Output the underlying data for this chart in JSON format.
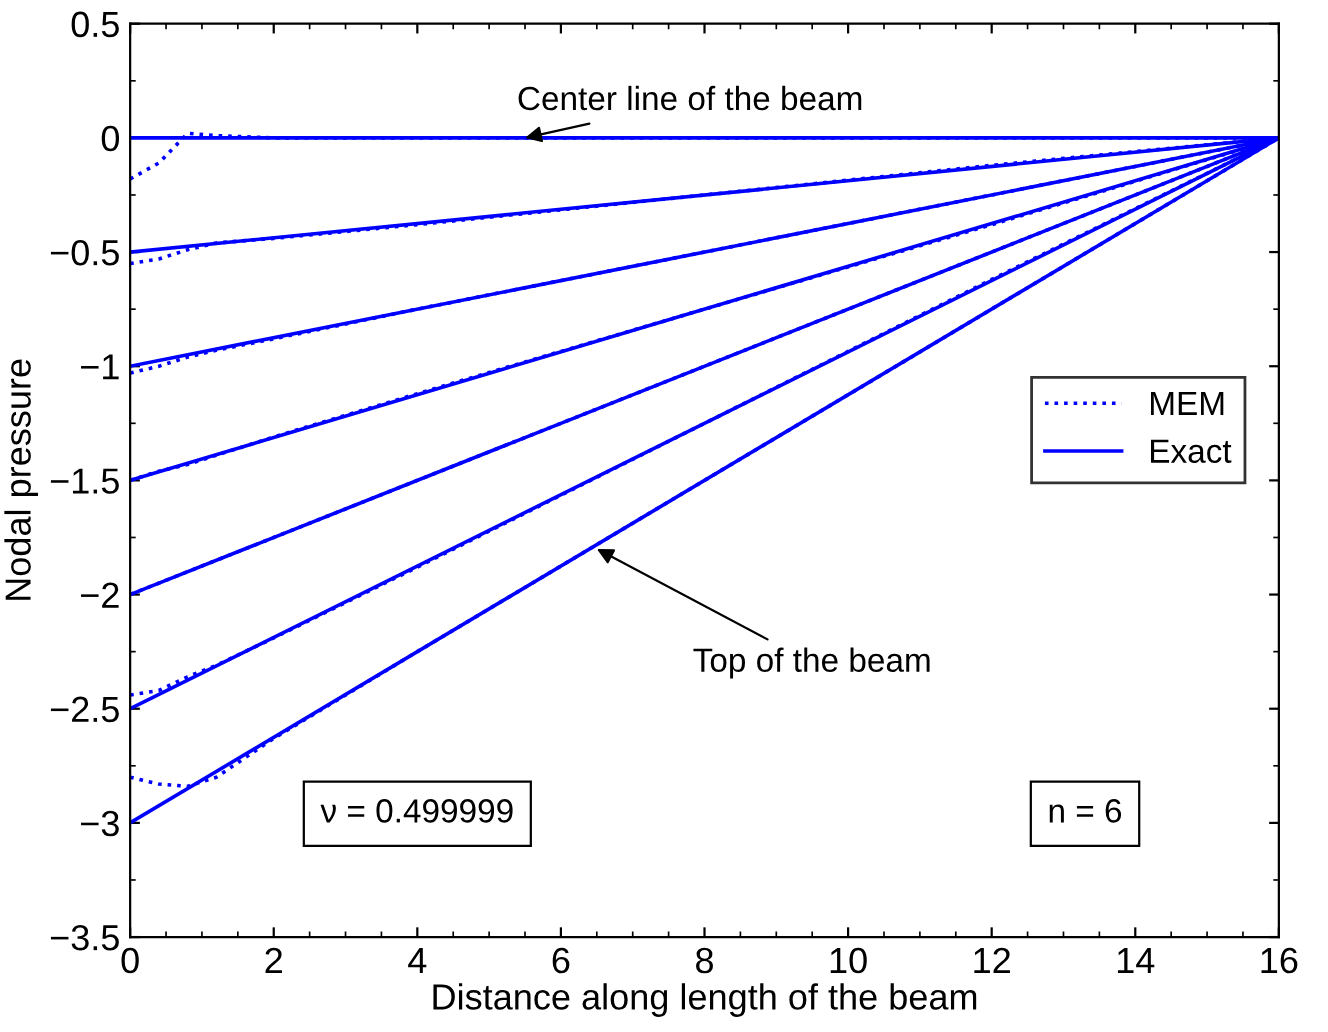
{
  "chart_data": {
    "type": "line",
    "xlabel": "Distance along length of the beam",
    "ylabel": "Nodal pressure",
    "xlim": [
      0,
      16
    ],
    "ylim": [
      -3.5,
      0.5
    ],
    "xticks": [
      0,
      2,
      4,
      6,
      8,
      10,
      12,
      14,
      16
    ],
    "yticks": [
      -3.5,
      -3,
      -2.5,
      -2,
      -1.5,
      -1,
      -0.5,
      0,
      0.5
    ],
    "grid": false,
    "legend": "right",
    "series": [
      {
        "name": "MEM",
        "color": "#0000ff",
        "line_style": "dotted",
        "x": [
          0,
          0.4,
          0.8,
          1.2,
          2,
          4,
          8,
          12,
          16
        ],
        "values": [
          -0.18,
          -0.11,
          0.02,
          0.01,
          0,
          0,
          0,
          0,
          0
        ]
      },
      {
        "color": "#0000ff",
        "line_style": "dotted",
        "x": [
          0,
          0.4,
          0.8,
          1.2,
          2,
          4,
          8,
          12,
          16
        ],
        "values": [
          -0.55,
          -0.53,
          -0.49,
          -0.46,
          -0.44,
          -0.38,
          -0.25,
          -0.12,
          0
        ]
      },
      {
        "color": "#0000ff",
        "line_style": "dotted",
        "x": [
          0,
          0.4,
          0.8,
          1.2,
          2,
          4,
          8,
          12,
          16
        ],
        "values": [
          -1.03,
          -1.0,
          -0.96,
          -0.93,
          -0.88,
          -0.75,
          -0.5,
          -0.25,
          0
        ]
      },
      {
        "color": "#0000ff",
        "line_style": "dotted",
        "x": [
          0,
          0.4,
          0.8,
          1.2,
          2,
          4,
          8,
          12,
          16
        ],
        "values": [
          -1.5,
          -1.46,
          -1.43,
          -1.39,
          -1.31,
          -1.12,
          -0.75,
          -0.38,
          0
        ]
      },
      {
        "color": "#0000ff",
        "line_style": "dotted",
        "x": [
          0,
          0.4,
          0.8,
          1.2,
          2,
          4,
          8,
          12,
          16
        ],
        "values": [
          -2.0,
          -1.95,
          -1.9,
          -1.85,
          -1.75,
          -1.5,
          -1.0,
          -0.5,
          0
        ]
      },
      {
        "color": "#0000ff",
        "line_style": "dotted",
        "x": [
          0,
          0.4,
          0.8,
          1.2,
          2,
          4,
          8,
          12,
          16
        ],
        "values": [
          -2.44,
          -2.42,
          -2.36,
          -2.31,
          -2.19,
          -1.88,
          -1.25,
          -0.62,
          0
        ]
      },
      {
        "color": "#0000ff",
        "line_style": "dotted",
        "x": [
          0,
          0.4,
          0.8,
          1.2,
          2,
          4,
          8,
          12,
          16
        ],
        "values": [
          -2.8,
          -2.83,
          -2.84,
          -2.8,
          -2.63,
          -2.25,
          -1.5,
          -0.75,
          0
        ]
      },
      {
        "name": "Exact",
        "color": "#0000ff",
        "line_style": "solid",
        "x": [
          0,
          16
        ],
        "values": [
          0,
          0
        ]
      },
      {
        "color": "#0000ff",
        "line_style": "solid",
        "x": [
          0,
          16
        ],
        "values": [
          -0.5,
          0
        ]
      },
      {
        "color": "#0000ff",
        "line_style": "solid",
        "x": [
          0,
          16
        ],
        "values": [
          -1.0,
          0
        ]
      },
      {
        "color": "#0000ff",
        "line_style": "solid",
        "x": [
          0,
          16
        ],
        "values": [
          -1.5,
          0
        ]
      },
      {
        "color": "#0000ff",
        "line_style": "solid",
        "x": [
          0,
          16
        ],
        "values": [
          -2.0,
          0
        ]
      },
      {
        "color": "#0000ff",
        "line_style": "solid",
        "x": [
          0,
          16
        ],
        "values": [
          -2.5,
          0
        ]
      },
      {
        "color": "#0000ff",
        "line_style": "solid",
        "x": [
          0,
          16
        ],
        "values": [
          -3.0,
          0
        ]
      }
    ],
    "annotations": [
      {
        "text": "Center line of the beam",
        "x": 5.5,
        "y": 0
      },
      {
        "text": "Top of the beam",
        "x": 6.5,
        "y": -1.8
      },
      "ν = 0.499999",
      "n = 6"
    ]
  }
}
